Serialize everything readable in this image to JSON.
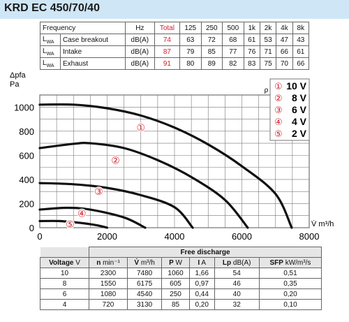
{
  "title": "KRD EC 450/70/40",
  "sound_table": {
    "header": [
      "Frequency",
      "",
      "Hz",
      "Total",
      "125",
      "250",
      "500",
      "1k",
      "2k",
      "4k",
      "8k"
    ],
    "rows": [
      {
        "sym": "L",
        "sub": "WA",
        "label": "Case breakout",
        "unit": "dB(A)",
        "total": "74",
        "values": [
          "63",
          "72",
          "68",
          "61",
          "53",
          "47",
          "43"
        ]
      },
      {
        "sym": "L",
        "sub": "WA",
        "label": "Intake",
        "unit": "dB(A)",
        "total": "87",
        "values": [
          "79",
          "85",
          "77",
          "76",
          "71",
          "66",
          "61"
        ]
      },
      {
        "sym": "L",
        "sub": "WA",
        "label": "Exhaust",
        "unit": "dB(A)",
        "total": "91",
        "values": [
          "80",
          "89",
          "82",
          "83",
          "75",
          "70",
          "66"
        ]
      }
    ],
    "total_color": "#d0202a"
  },
  "chart_data": {
    "type": "line",
    "ylabel_line1": "Δpfa",
    "ylabel_line2": "Pa",
    "xlabel": "V̇ m³/h",
    "density_note": "ρ = 1,20 kg/m³",
    "xlim": [
      0,
      8000
    ],
    "ylim": [
      0,
      1100
    ],
    "x_ticks": [
      "0",
      "2000",
      "4000",
      "6000",
      "8000"
    ],
    "y_ticks": [
      "0",
      "200",
      "400",
      "600",
      "800",
      "1000"
    ],
    "grid": true,
    "legend_position": "top-right",
    "series": [
      {
        "name": "10 V",
        "marker": "①",
        "points": [
          [
            0,
            1020
          ],
          [
            1000,
            1020
          ],
          [
            2000,
            990
          ],
          [
            3000,
            930
          ],
          [
            4000,
            830
          ],
          [
            5000,
            690
          ],
          [
            6000,
            510
          ],
          [
            7000,
            280
          ],
          [
            7480,
            0
          ]
        ],
        "label_at": [
          3000,
          830
        ]
      },
      {
        "name": "8 V",
        "marker": "②",
        "points": [
          [
            0,
            660
          ],
          [
            1000,
            695
          ],
          [
            1500,
            700
          ],
          [
            2500,
            660
          ],
          [
            3500,
            560
          ],
          [
            4500,
            420
          ],
          [
            5500,
            230
          ],
          [
            6175,
            0
          ]
        ],
        "label_at": [
          2250,
          560
        ]
      },
      {
        "name": "6 V",
        "marker": "③",
        "points": [
          [
            0,
            370
          ],
          [
            1000,
            360
          ],
          [
            2000,
            330
          ],
          [
            3000,
            270
          ],
          [
            4000,
            170
          ],
          [
            4540,
            0
          ]
        ],
        "label_at": [
          1750,
          300
        ]
      },
      {
        "name": "4 V",
        "marker": "④",
        "points": [
          [
            0,
            150
          ],
          [
            800,
            165
          ],
          [
            1500,
            150
          ],
          [
            2500,
            85
          ],
          [
            3130,
            0
          ]
        ],
        "label_at": [
          1250,
          120
        ]
      },
      {
        "name": "2 V",
        "marker": "⑤",
        "points": [
          [
            0,
            55
          ],
          [
            600,
            55
          ],
          [
            1200,
            40
          ],
          [
            1700,
            20
          ],
          [
            2000,
            0
          ]
        ],
        "label_at": [
          900,
          30
        ]
      }
    ],
    "curve_color": "#111111",
    "marker_color": "#d0202a"
  },
  "discharge_table": {
    "group_header": "Free discharge",
    "headers": [
      {
        "bold": "Voltage",
        "unit": "V"
      },
      {
        "bold": "n",
        "unit": "min⁻¹"
      },
      {
        "bold": "V̇",
        "unit": "m³/h"
      },
      {
        "bold": "P",
        "unit": "W"
      },
      {
        "bold": "I",
        "unit": "A"
      },
      {
        "bold": "Lp",
        "unit": "dB(A)"
      },
      {
        "bold": "SFP",
        "unit": "kW/m³/s"
      }
    ],
    "rows": [
      [
        "10",
        "2300",
        "7480",
        "1060",
        "1,66",
        "54",
        "0,51"
      ],
      [
        "8",
        "1550",
        "6175",
        "605",
        "0,97",
        "46",
        "0,35"
      ],
      [
        "6",
        "1080",
        "4540",
        "250",
        "0,44",
        "40",
        "0,20"
      ],
      [
        "4",
        "720",
        "3130",
        "85",
        "0,20",
        "32",
        "0,10"
      ]
    ]
  }
}
